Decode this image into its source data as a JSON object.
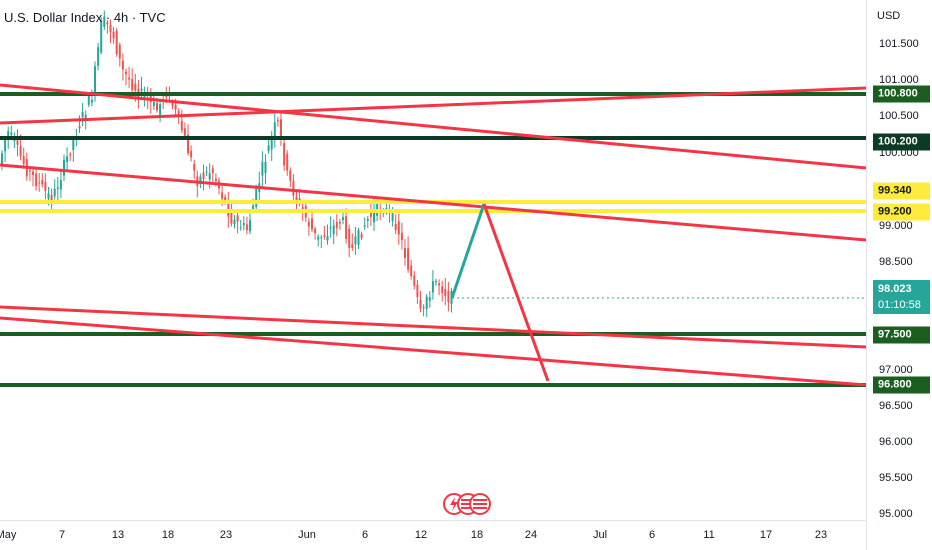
{
  "legend": {
    "title": "U.S. Dollar Index · 4h · TVC"
  },
  "price_scale": {
    "currency": "USD",
    "ticks": [
      "101.500",
      "101.000",
      "100.500",
      "100.000",
      "99.000",
      "98.500",
      "97.000",
      "96.500",
      "96.000",
      "95.500",
      "95.000"
    ],
    "level_tags": [
      {
        "label": "100.800",
        "style": "green"
      },
      {
        "label": "100.200",
        "style": "dark"
      },
      {
        "label": "99.340",
        "style": "yellow"
      },
      {
        "label": "99.200",
        "style": "yellow"
      },
      {
        "label": "97.500",
        "style": "green"
      },
      {
        "label": "96.800",
        "style": "green"
      }
    ],
    "current_price": "98.023",
    "countdown": "01:10:58"
  },
  "time_axis": {
    "labels": [
      "May",
      "7",
      "13",
      "18",
      "23",
      "Jun",
      "6",
      "12",
      "18",
      "24",
      "Jul",
      "6",
      "11",
      "17",
      "23"
    ]
  },
  "colors": {
    "support_green": "#1b5e20",
    "zone_yellow": "#ffeb3b",
    "trend_red": "#f23645",
    "projection_teal": "#26a69a",
    "candle_up": "#26a69a",
    "candle_down": "#ef5350"
  },
  "icons": {
    "event_marker": "economic-event-flag-icon"
  }
}
